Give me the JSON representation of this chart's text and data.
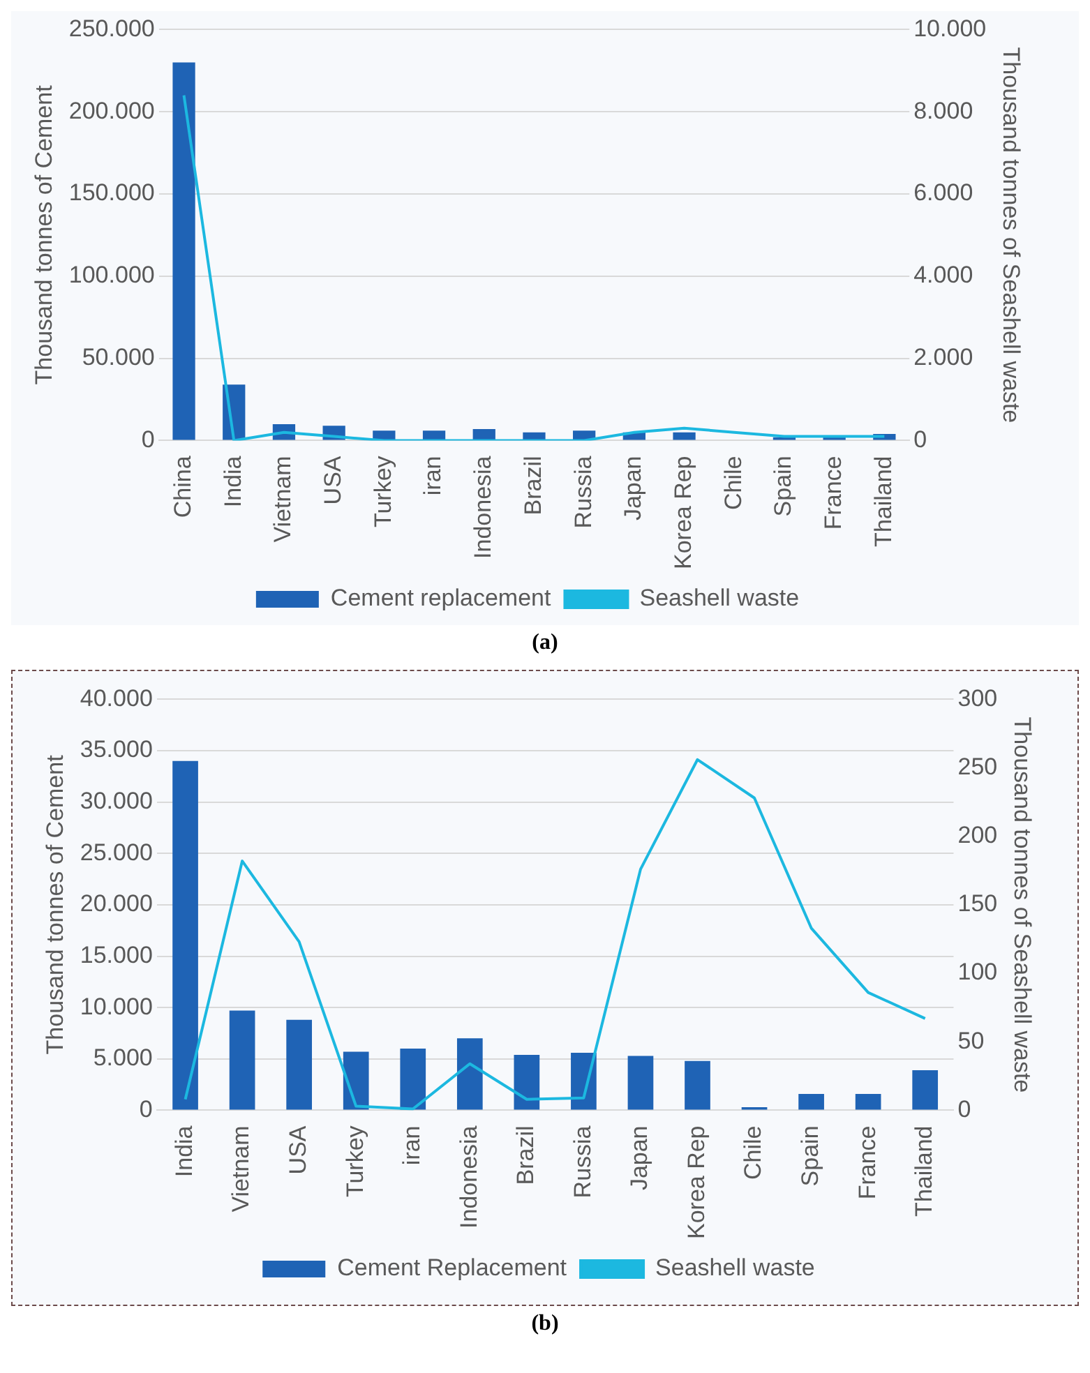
{
  "chart_data": [
    {
      "type": "bar",
      "ylabel": "Thousand tonnes of Cement",
      "y2label": "Thousand tonnes of Seashell waste",
      "annotations": [
        "(a)"
      ],
      "categories": [
        "China",
        "India",
        "Vietnam",
        "USA",
        "Turkey",
        "iran",
        "Indonesia",
        "Brazil",
        "Russia",
        "Japan",
        "Korea Rep",
        "Chile",
        "Spain",
        "France",
        "Thailand"
      ],
      "series": [
        {
          "name": "Cement replacement",
          "color": "#1f63b5",
          "values": [
            230000,
            34000,
            10000,
            9000,
            6000,
            6000,
            7000,
            5000,
            6000,
            5000,
            5000,
            0,
            2000,
            2000,
            4000
          ]
        },
        {
          "name": "Seashell waste",
          "type": "line",
          "axis": "y2",
          "color": "#1cb8e0",
          "values": [
            8400,
            0,
            200,
            100,
            0,
            0,
            0,
            0,
            0,
            200,
            300,
            200,
            100,
            100,
            100
          ]
        }
      ],
      "ylim": [
        0,
        250000
      ],
      "yticks": [
        {
          "value": 0,
          "label": "0"
        },
        {
          "value": 50000,
          "label": "50.000"
        },
        {
          "value": 100000,
          "label": "100.000"
        },
        {
          "value": 150000,
          "label": "150.000"
        },
        {
          "value": 200000,
          "label": "200.000"
        },
        {
          "value": 250000,
          "label": "250.000"
        }
      ],
      "y2lim": [
        0,
        10000
      ],
      "y2ticks": [
        {
          "value": 0,
          "label": "0"
        },
        {
          "value": 2000,
          "label": "2.000"
        },
        {
          "value": 4000,
          "label": "4.000"
        },
        {
          "value": 6000,
          "label": "6.000"
        },
        {
          "value": 8000,
          "label": "8.000"
        },
        {
          "value": 10000,
          "label": "10.000"
        }
      ],
      "grid": "y",
      "legend": "bottom",
      "marker": "none",
      "line_style": "solid"
    },
    {
      "type": "bar",
      "ylabel": "Thousand tonnes of Cement",
      "y2label": "Thousand tonnes of Seashell waste",
      "annotations": [
        "(b)"
      ],
      "categories": [
        "India",
        "Vietnam",
        "USA",
        "Turkey",
        "iran",
        "Indonesia",
        "Brazil",
        "Russia",
        "Japan",
        "Korea Rep",
        "Chile",
        "Spain",
        "France",
        "Thailand"
      ],
      "series": [
        {
          "name": "Cement Replacement",
          "color": "#1f63b5",
          "values": [
            34000,
            9700,
            8800,
            5700,
            6000,
            7000,
            5400,
            5600,
            5300,
            4800,
            300,
            1600,
            1600,
            3900
          ]
        },
        {
          "name": "Seashell waste",
          "type": "line",
          "axis": "y2",
          "color": "#1cb8e0",
          "values": [
            8,
            182,
            123,
            3,
            1,
            34,
            8,
            9,
            176,
            256,
            228,
            133,
            86,
            67
          ]
        }
      ],
      "ylim": [
        0,
        40000
      ],
      "yticks": [
        {
          "value": 0,
          "label": "0"
        },
        {
          "value": 5000,
          "label": "5.000"
        },
        {
          "value": 10000,
          "label": "10.000"
        },
        {
          "value": 15000,
          "label": "15.000"
        },
        {
          "value": 20000,
          "label": "20.000"
        },
        {
          "value": 25000,
          "label": "25.000"
        },
        {
          "value": 30000,
          "label": "30.000"
        },
        {
          "value": 35000,
          "label": "35.000"
        },
        {
          "value": 40000,
          "label": "40.000"
        }
      ],
      "y2lim": [
        0,
        300
      ],
      "y2ticks": [
        0,
        50,
        100,
        150,
        200,
        250,
        300
      ],
      "grid": "y",
      "legend": "bottom",
      "marker": "none",
      "line_style": "solid"
    }
  ]
}
